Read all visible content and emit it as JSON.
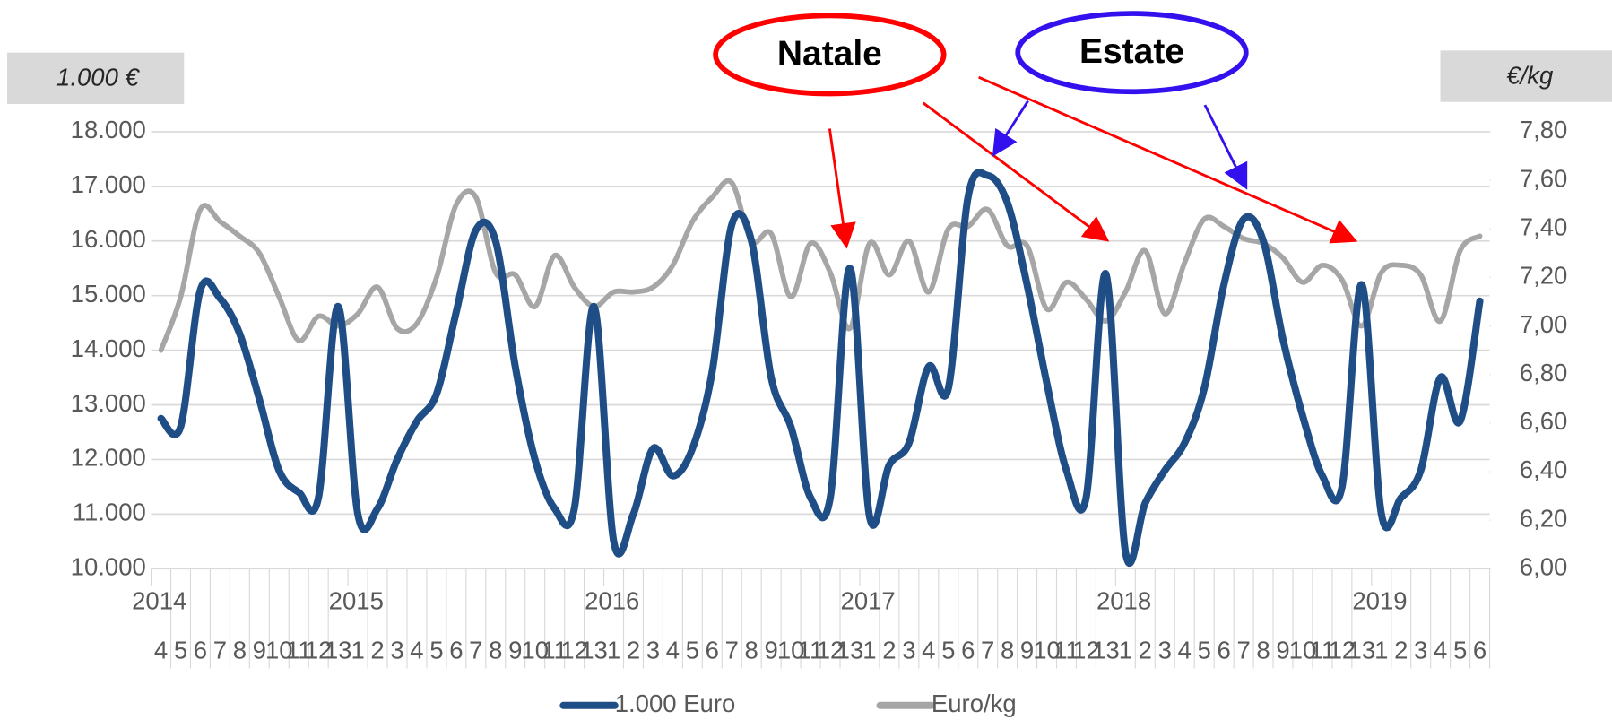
{
  "chart_data": {
    "type": "line",
    "y_label": "1.000 €",
    "y2_label": "€/kg",
    "annotations": [
      "Natale",
      "Estate"
    ],
    "categories": [
      "4",
      "5",
      "6",
      "7",
      "8",
      "9",
      "10",
      "11",
      "12",
      "13",
      "1",
      "2",
      "3",
      "4",
      "5",
      "6",
      "7",
      "8",
      "9",
      "10",
      "11",
      "12",
      "13",
      "1",
      "2",
      "3",
      "4",
      "5",
      "6",
      "7",
      "8",
      "9",
      "10",
      "11",
      "12",
      "13",
      "1",
      "2",
      "3",
      "4",
      "5",
      "6",
      "7",
      "8",
      "9",
      "10",
      "11",
      "12",
      "13",
      "1",
      "2",
      "3",
      "4",
      "5",
      "6",
      "7",
      "8",
      "9",
      "10",
      "11",
      "12",
      "13",
      "1",
      "2",
      "3",
      "4",
      "5",
      "6"
    ],
    "years": [
      "2014",
      null,
      null,
      null,
      null,
      null,
      null,
      null,
      null,
      null,
      "2015",
      null,
      null,
      null,
      null,
      null,
      null,
      null,
      null,
      null,
      null,
      null,
      null,
      "2016",
      null,
      null,
      null,
      null,
      null,
      null,
      null,
      null,
      null,
      null,
      null,
      null,
      "2017",
      null,
      null,
      null,
      null,
      null,
      null,
      null,
      null,
      null,
      null,
      null,
      null,
      "2018",
      null,
      null,
      null,
      null,
      null,
      null,
      null,
      null,
      null,
      null,
      null,
      null,
      "2019",
      null,
      null,
      null,
      null,
      null
    ],
    "series": [
      {
        "name": "1.000 Euro",
        "color": "#1f4e86",
        "values": [
          12750,
          12600,
          15100,
          14950,
          14300,
          13100,
          11800,
          11400,
          11300,
          14800,
          11000,
          11100,
          12000,
          12700,
          13200,
          14700,
          16200,
          16000,
          13700,
          12000,
          11100,
          11100,
          14800,
          10500,
          11000,
          12200,
          11700,
          12200,
          13600,
          16300,
          16000,
          13500,
          12600,
          11300,
          11300,
          15500,
          10950,
          11900,
          12300,
          13700,
          13300,
          16800,
          17200,
          16700,
          15200,
          13400,
          11800,
          11300,
          15400,
          10300,
          11200,
          11800,
          12300,
          13300,
          15200,
          16400,
          16000,
          14200,
          12800,
          11700,
          11500,
          15200,
          11000,
          11300,
          11800,
          13500,
          12700,
          14900
        ]
      },
      {
        "name": "Euro/kg",
        "color": "#a6a6a6",
        "axis": "y2",
        "values": [
          6.9,
          7.12,
          7.48,
          7.43,
          7.37,
          7.3,
          7.12,
          6.94,
          7.04,
          7.0,
          7.05,
          7.16,
          6.99,
          7.01,
          7.2,
          7.5,
          7.53,
          7.22,
          7.21,
          7.08,
          7.29,
          7.16,
          7.08,
          7.14,
          7.14,
          7.16,
          7.25,
          7.43,
          7.53,
          7.59,
          7.35,
          7.38,
          7.12,
          7.34,
          7.22,
          6.99,
          7.34,
          7.21,
          7.35,
          7.14,
          7.4,
          7.41,
          7.48,
          7.33,
          7.33,
          7.07,
          7.18,
          7.11,
          7.02,
          7.14,
          7.31,
          7.05,
          7.26,
          7.44,
          7.41,
          7.36,
          7.34,
          7.28,
          7.18,
          7.25,
          7.19,
          7.0,
          7.22,
          7.25,
          7.21,
          7.02,
          7.31,
          7.37
        ]
      }
    ],
    "ylim": [
      10000,
      18000
    ],
    "yticks": [
      {
        "value": 10000,
        "label": "10.000"
      },
      {
        "value": 11000,
        "label": "11.000"
      },
      {
        "value": 12000,
        "label": "12.000"
      },
      {
        "value": 13000,
        "label": "13.000"
      },
      {
        "value": 14000,
        "label": "14.000"
      },
      {
        "value": 15000,
        "label": "15.000"
      },
      {
        "value": 16000,
        "label": "16.000"
      },
      {
        "value": 17000,
        "label": "17.000"
      },
      {
        "value": 18000,
        "label": "18.000"
      }
    ],
    "y2lim": [
      6.0,
      7.8
    ],
    "y2ticks": [
      {
        "value": 6.0,
        "label": "6,00"
      },
      {
        "value": 6.2,
        "label": "6,20"
      },
      {
        "value": 6.4,
        "label": "6,40"
      },
      {
        "value": 6.6,
        "label": "6,60"
      },
      {
        "value": 6.8,
        "label": "6,80"
      },
      {
        "value": 7.0,
        "label": "7,00"
      },
      {
        "value": 7.2,
        "label": "7,20"
      },
      {
        "value": 7.4,
        "label": "7,40"
      },
      {
        "value": 7.6,
        "label": "7,60"
      },
      {
        "value": 7.8,
        "label": "7,80"
      }
    ],
    "grid": true
  }
}
